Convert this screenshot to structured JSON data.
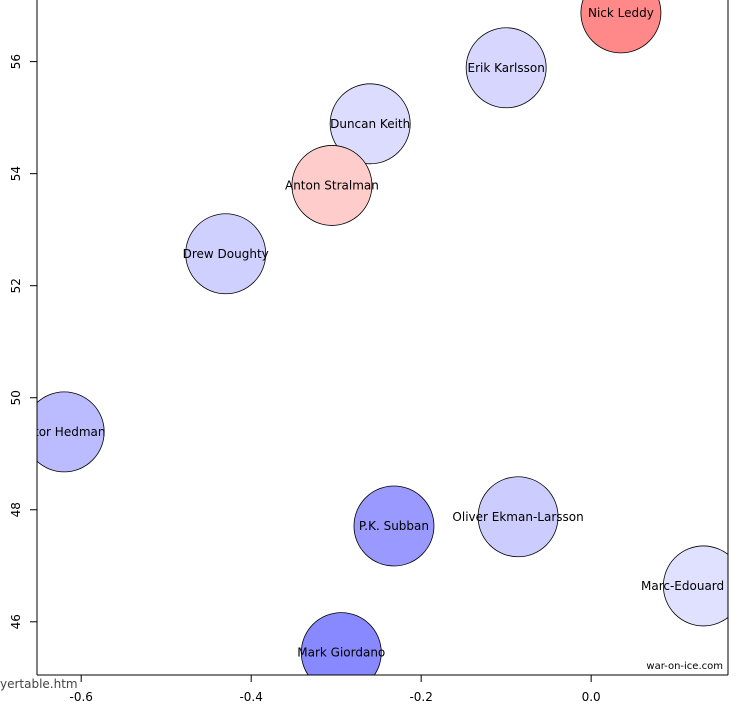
{
  "chart_data": {
    "type": "scatter",
    "title": "",
    "xlabel": "",
    "ylabel": "",
    "xlim": [
      -0.652,
      0.161
    ],
    "ylim": [
      45.05,
      57.1
    ],
    "x_ticks": [
      "-0.6",
      "-0.4",
      "-0.2",
      "0.0"
    ],
    "x_tick_values": [
      -0.6,
      -0.4,
      -0.2,
      0.0
    ],
    "y_ticks": [
      "46",
      "48",
      "50",
      "52",
      "54",
      "56"
    ],
    "y_tick_values": [
      46,
      48,
      50,
      52,
      54,
      56
    ],
    "grid": false,
    "points": [
      {
        "label": "Nick Leddy",
        "x": 0.035,
        "y": 56.87,
        "color": "#ff8888"
      },
      {
        "label": "Erik Karlsson",
        "x": -0.1,
        "y": 55.89,
        "color": "#d6d6ff"
      },
      {
        "label": "Duncan Keith",
        "x": -0.26,
        "y": 54.89,
        "color": "#dcdcff"
      },
      {
        "label": "Anton Stralman",
        "x": -0.305,
        "y": 53.79,
        "color": "#ffcccc"
      },
      {
        "label": "Drew Doughty",
        "x": -0.43,
        "y": 52.57,
        "color": "#d0d0ff"
      },
      {
        "label": "tor Hedman",
        "x": -0.62,
        "y": 49.39,
        "color": "#bbbbff"
      },
      {
        "label": "P.K. Subban",
        "x": -0.232,
        "y": 47.71,
        "color": "#9999ff"
      },
      {
        "label": "Oliver Ekman-Larsson",
        "x": -0.086,
        "y": 47.875,
        "color": "#ccccff"
      },
      {
        "label": "Marc-Edouard",
        "x": 0.132,
        "y": 46.64,
        "color": "#e0e0ff"
      },
      {
        "label": "Mark Giordano",
        "x": -0.294,
        "y": 45.45,
        "color": "#8888ff"
      }
    ],
    "watermark": "war-on-ice.com"
  },
  "status_text": "yertable.htm"
}
